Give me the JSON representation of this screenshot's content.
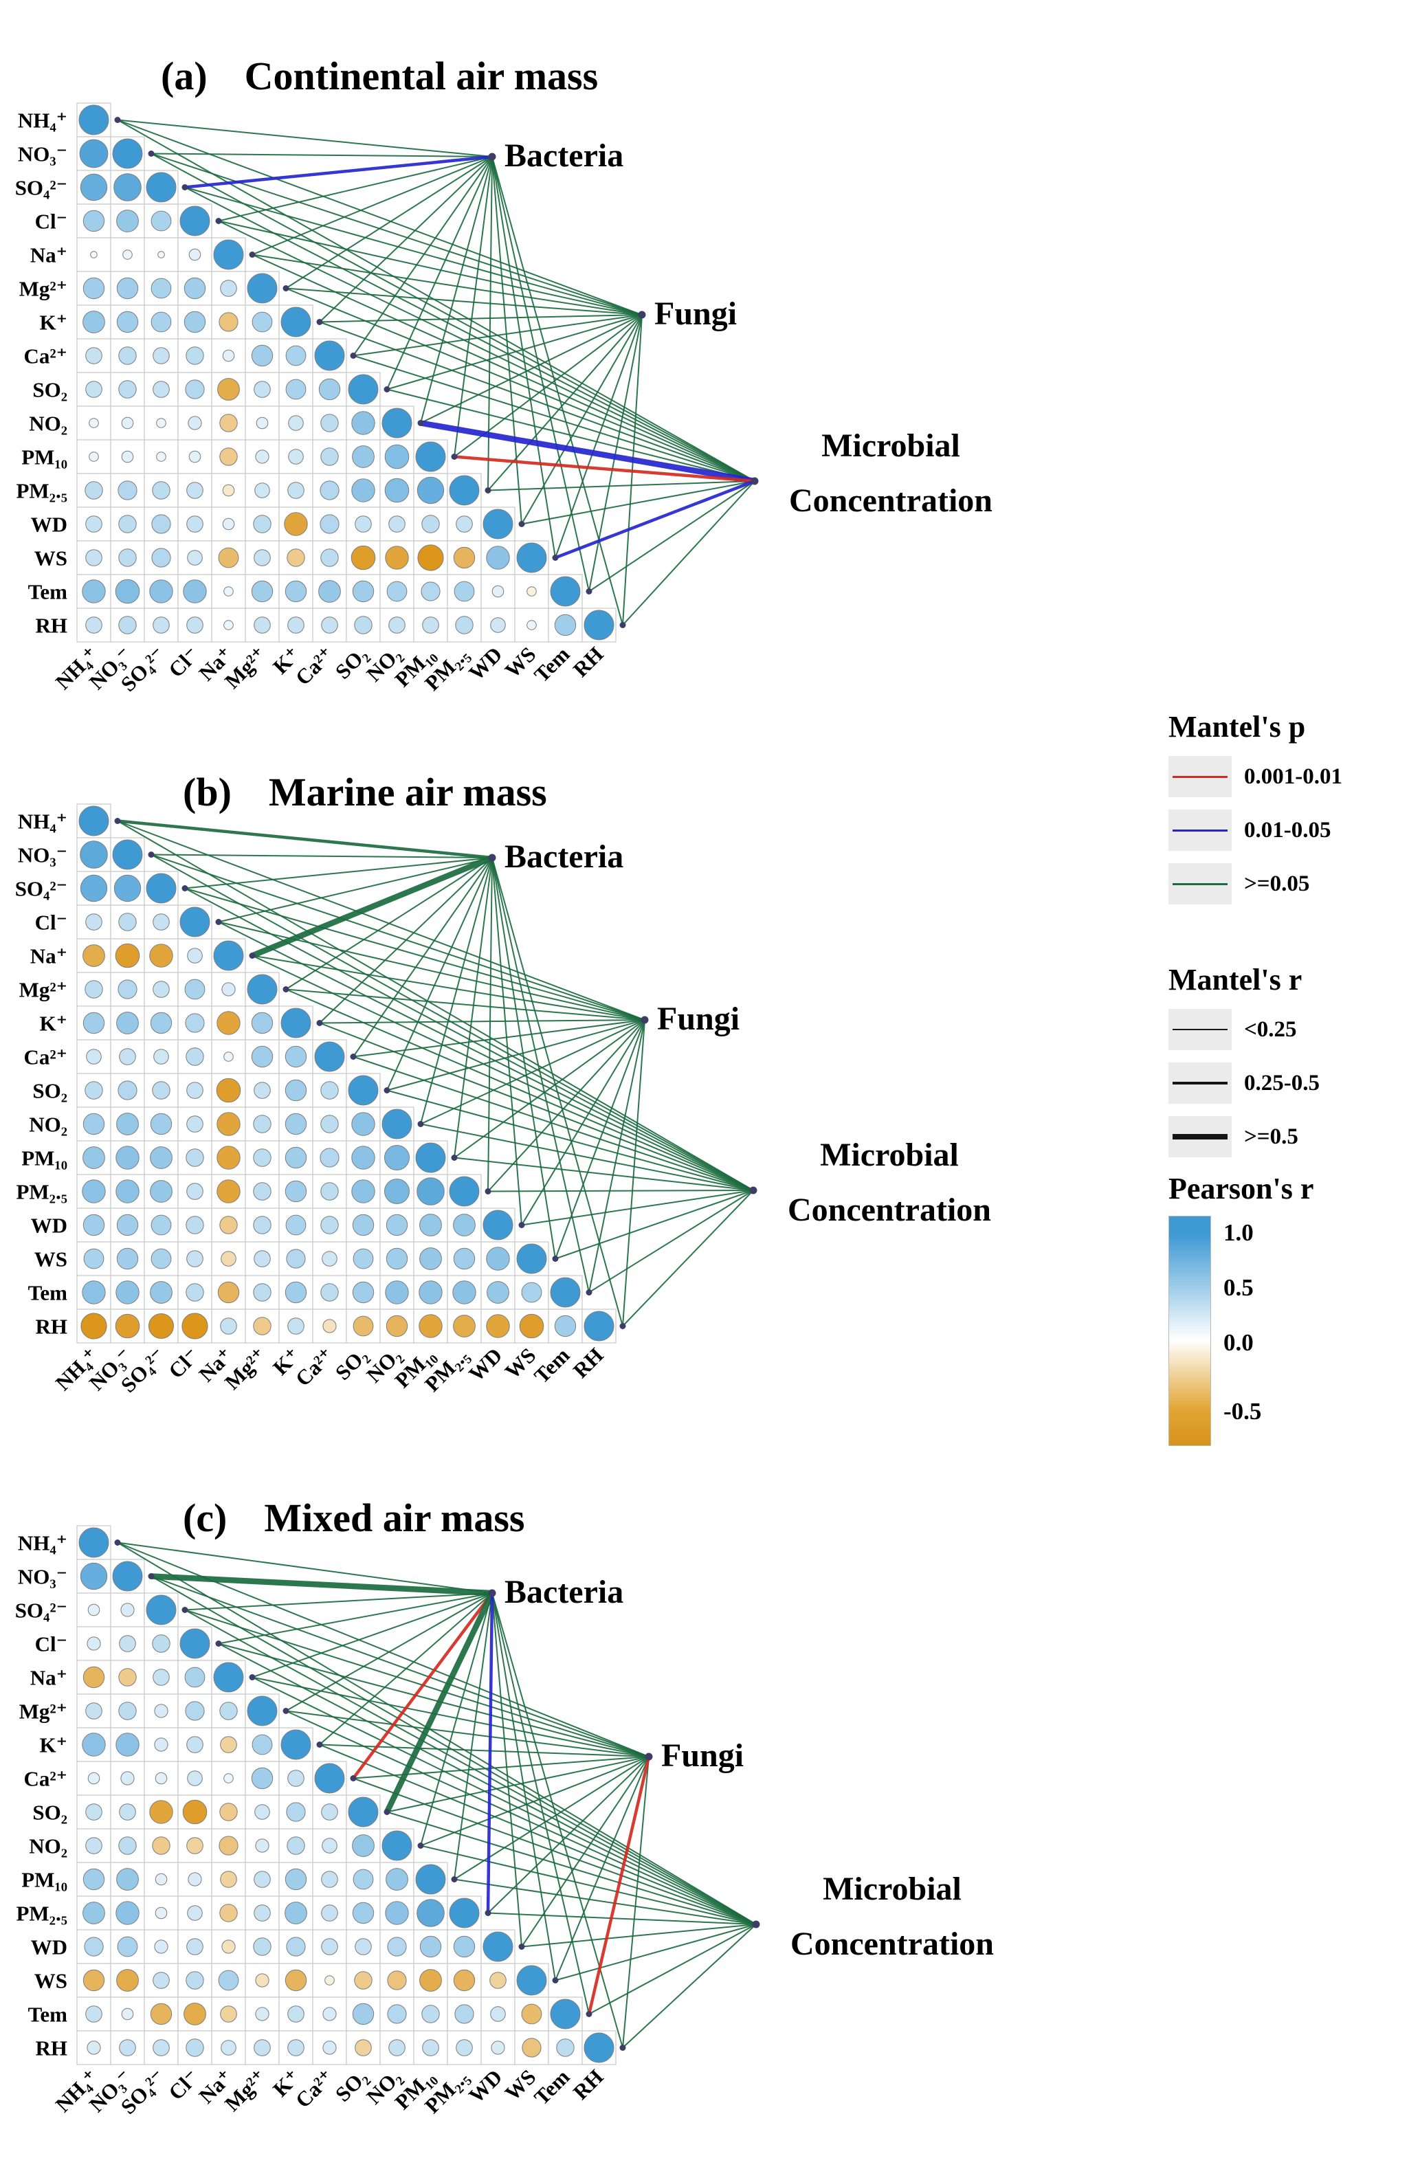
{
  "legend": {
    "mantel_p": {
      "title": "Mantel's p",
      "items": [
        {
          "label": "0.001-0.01",
          "color": "#D42A20"
        },
        {
          "label": "0.01-0.05",
          "color": "#2525CE"
        },
        {
          "label": ">=0.05",
          "color": "#1B6B3F"
        }
      ]
    },
    "mantel_r": {
      "title": "Mantel's r",
      "items": [
        {
          "label": "<0.25",
          "width": 2
        },
        {
          "label": "0.25-0.5",
          "width": 4.5
        },
        {
          "label": ">=0.5",
          "width": 8.5
        }
      ]
    },
    "pearson": {
      "title": "Pearson's r",
      "ticks": [
        "1.0",
        "0.5",
        "0.0",
        "-0.5"
      ],
      "palette": {
        "pos": "#3F9AD4",
        "neg": "#DC961B"
      },
      "gradient": [
        {
          "stop": 0,
          "color": "#3F9AD4"
        },
        {
          "stop": 8,
          "color": "#3F9AD4"
        },
        {
          "stop": 54,
          "color": "#FFFFFF"
        },
        {
          "stop": 84,
          "color": "#E2A637"
        },
        {
          "stop": 100,
          "color": "#D6921B"
        }
      ]
    }
  },
  "chart_data": [
    {
      "type": "heatmap",
      "panel": "a",
      "tag": "(a)",
      "title": "Continental air mass",
      "variables": [
        "NH₄⁺",
        "NO₃⁻",
        "SO₄²⁻",
        "Cl⁻",
        "Na⁺",
        "Mg²⁺",
        "K⁺",
        "Ca²⁺",
        "SO₂",
        "NO₂",
        "PM₁₀",
        "PM₂.₅",
        "WD",
        "WS",
        "Tem",
        "RH"
      ],
      "matrix": [
        [
          1
        ],
        [
          0.9,
          1
        ],
        [
          0.8,
          0.85,
          1
        ],
        [
          0.5,
          0.55,
          0.45,
          1
        ],
        [
          0.05,
          0.1,
          0.05,
          0.15,
          1
        ],
        [
          0.5,
          0.5,
          0.45,
          0.5,
          0.3,
          1
        ],
        [
          0.55,
          0.5,
          0.45,
          0.5,
          -0.4,
          0.45,
          1
        ],
        [
          0.3,
          0.35,
          0.3,
          0.35,
          0.15,
          0.5,
          0.45,
          1
        ],
        [
          0.3,
          0.35,
          0.3,
          0.4,
          -0.55,
          0.3,
          0.45,
          0.5,
          1
        ],
        [
          0.1,
          0.15,
          0.1,
          0.2,
          -0.35,
          0.15,
          0.25,
          0.35,
          0.6,
          1
        ],
        [
          0.1,
          0.15,
          0.1,
          0.15,
          -0.35,
          0.2,
          0.25,
          0.35,
          0.55,
          0.65,
          1
        ],
        [
          0.35,
          0.4,
          0.35,
          0.3,
          -0.15,
          0.25,
          0.3,
          0.4,
          0.6,
          0.65,
          0.8,
          1
        ],
        [
          0.3,
          0.35,
          0.4,
          0.3,
          0.15,
          0.35,
          -0.6,
          0.4,
          0.3,
          0.3,
          0.35,
          0.3,
          1
        ],
        [
          0.3,
          0.35,
          0.4,
          0.25,
          -0.45,
          0.3,
          -0.35,
          0.35,
          -0.65,
          -0.6,
          -0.75,
          -0.5,
          0.6,
          1
        ],
        [
          0.6,
          0.65,
          0.6,
          0.6,
          0.1,
          0.5,
          0.5,
          0.55,
          0.5,
          0.45,
          0.4,
          0.45,
          0.15,
          -0.1,
          1
        ],
        [
          0.3,
          0.35,
          0.3,
          0.3,
          0.1,
          0.3,
          0.3,
          0.3,
          0.35,
          0.3,
          0.3,
          0.35,
          0.25,
          0.1,
          0.5,
          1
        ]
      ],
      "nodes": [
        {
          "id": "bacteria",
          "lines": [
            "Bacteria"
          ]
        },
        {
          "id": "fungi",
          "lines": [
            "Fungi"
          ]
        },
        {
          "id": "microbial",
          "lines": [
            "Microbial",
            "Concentration"
          ]
        }
      ],
      "edge_default": {
        "p": ">=0.05",
        "r": "<0.25"
      },
      "edge_overrides": [
        {
          "node": "bacteria",
          "var": "SO₄²⁻",
          "p": "0.01-0.05",
          "r": "0.25-0.5"
        },
        {
          "node": "microbial",
          "var": "NO₂",
          "p": "0.01-0.05",
          "r": ">=0.5"
        },
        {
          "node": "microbial",
          "var": "PM₁₀",
          "p": "0.001-0.01",
          "r": "0.25-0.5"
        },
        {
          "node": "microbial",
          "var": "WS",
          "p": "0.01-0.05",
          "r": "0.25-0.5"
        }
      ]
    },
    {
      "type": "heatmap",
      "panel": "b",
      "tag": "(b)",
      "title": "Marine air mass",
      "variables": [
        "NH₄⁺",
        "NO₃⁻",
        "SO₄²⁻",
        "Cl⁻",
        "Na⁺",
        "Mg²⁺",
        "K⁺",
        "Ca²⁺",
        "SO₂",
        "NO₂",
        "PM₁₀",
        "PM₂.₅",
        "WD",
        "WS",
        "Tem",
        "RH"
      ],
      "matrix": [
        [
          1
        ],
        [
          0.85,
          1
        ],
        [
          0.8,
          0.8,
          1
        ],
        [
          0.3,
          0.35,
          0.3,
          1
        ],
        [
          -0.55,
          -0.65,
          -0.6,
          0.25,
          1
        ],
        [
          0.35,
          0.4,
          0.3,
          0.45,
          0.2,
          1
        ],
        [
          0.5,
          0.55,
          0.5,
          0.4,
          -0.6,
          0.5,
          1
        ],
        [
          0.25,
          0.3,
          0.25,
          0.35,
          0.1,
          0.5,
          0.5,
          1
        ],
        [
          0.35,
          0.4,
          0.35,
          0.3,
          -0.65,
          0.3,
          0.5,
          0.35,
          1
        ],
        [
          0.5,
          0.55,
          0.5,
          0.3,
          -0.6,
          0.35,
          0.5,
          0.35,
          0.6,
          1
        ],
        [
          0.55,
          0.6,
          0.55,
          0.35,
          -0.6,
          0.35,
          0.5,
          0.4,
          0.6,
          0.7,
          1
        ],
        [
          0.6,
          0.6,
          0.55,
          0.3,
          -0.6,
          0.35,
          0.5,
          0.35,
          0.6,
          0.7,
          0.85,
          1
        ],
        [
          0.5,
          0.5,
          0.45,
          0.35,
          -0.35,
          0.35,
          0.45,
          0.35,
          0.5,
          0.5,
          0.55,
          0.55,
          1
        ],
        [
          0.45,
          0.5,
          0.45,
          0.3,
          -0.25,
          0.3,
          0.4,
          0.25,
          0.45,
          0.5,
          0.55,
          0.5,
          0.6,
          1
        ],
        [
          0.6,
          0.6,
          0.55,
          0.35,
          -0.5,
          0.35,
          0.5,
          0.35,
          0.5,
          0.6,
          0.6,
          0.6,
          0.55,
          0.45,
          1
        ],
        [
          -0.75,
          -0.65,
          -0.7,
          -0.75,
          0.3,
          -0.35,
          0.3,
          -0.2,
          -0.45,
          -0.5,
          -0.6,
          -0.55,
          -0.6,
          -0.65,
          0.5,
          1
        ]
      ],
      "nodes": [
        {
          "id": "bacteria",
          "lines": [
            "Bacteria"
          ]
        },
        {
          "id": "fungi",
          "lines": [
            "Fungi"
          ]
        },
        {
          "id": "microbial",
          "lines": [
            "Microbial",
            "Concentration"
          ]
        }
      ],
      "edge_default": {
        "p": ">=0.05",
        "r": "<0.25"
      },
      "edge_overrides": [
        {
          "node": "bacteria",
          "var": "Na⁺",
          "p": ">=0.05",
          "r": ">=0.5"
        },
        {
          "node": "bacteria",
          "var": "NH₄⁺",
          "p": ">=0.05",
          "r": "0.25-0.5"
        }
      ]
    },
    {
      "type": "heatmap",
      "panel": "c",
      "tag": "(c)",
      "title": "Mixed air mass",
      "variables": [
        "NH₄⁺",
        "NO₃⁻",
        "SO₄²⁻",
        "Cl⁻",
        "Na⁺",
        "Mg²⁺",
        "K⁺",
        "Ca²⁺",
        "SO₂",
        "NO₂",
        "PM₁₀",
        "PM₂.₅",
        "WD",
        "WS",
        "Tem",
        "RH"
      ],
      "matrix": [
        [
          1
        ],
        [
          0.8,
          1
        ],
        [
          0.15,
          0.2,
          1
        ],
        [
          0.2,
          0.3,
          0.35,
          1
        ],
        [
          -0.5,
          -0.35,
          0.3,
          0.45,
          1
        ],
        [
          0.3,
          0.35,
          0.2,
          0.4,
          0.35,
          1
        ],
        [
          0.6,
          0.6,
          0.2,
          0.3,
          -0.3,
          0.45,
          1
        ],
        [
          0.15,
          0.2,
          0.15,
          0.25,
          0.1,
          0.5,
          0.3,
          1
        ],
        [
          0.3,
          0.3,
          -0.6,
          -0.65,
          -0.35,
          0.25,
          0.4,
          0.3,
          1
        ],
        [
          0.3,
          0.35,
          -0.35,
          -0.3,
          -0.4,
          0.2,
          0.35,
          0.25,
          0.55,
          1
        ],
        [
          0.5,
          0.55,
          0.15,
          0.2,
          -0.3,
          0.3,
          0.5,
          0.3,
          0.45,
          0.55,
          1
        ],
        [
          0.55,
          0.6,
          0.15,
          0.25,
          -0.35,
          0.3,
          0.55,
          0.3,
          0.5,
          0.6,
          0.85,
          1
        ],
        [
          0.4,
          0.45,
          0.2,
          0.3,
          -0.2,
          0.35,
          0.4,
          0.3,
          0.3,
          0.4,
          0.5,
          0.5,
          1
        ],
        [
          -0.5,
          -0.55,
          0.3,
          0.35,
          0.45,
          -0.2,
          -0.5,
          -0.1,
          -0.35,
          -0.4,
          -0.55,
          -0.5,
          -0.3,
          1
        ],
        [
          0.3,
          0.15,
          -0.5,
          -0.55,
          -0.3,
          0.2,
          0.3,
          0.2,
          0.5,
          0.4,
          0.35,
          0.4,
          0.25,
          -0.45,
          1
        ],
        [
          0.2,
          0.3,
          0.3,
          0.35,
          0.25,
          0.3,
          0.3,
          0.2,
          -0.3,
          0.3,
          0.3,
          0.3,
          0.2,
          -0.4,
          0.35,
          1
        ]
      ],
      "nodes": [
        {
          "id": "bacteria",
          "lines": [
            "Bacteria"
          ]
        },
        {
          "id": "fungi",
          "lines": [
            "Fungi"
          ]
        },
        {
          "id": "microbial",
          "lines": [
            "Microbial",
            "Concentration"
          ]
        }
      ],
      "edge_default": {
        "p": ">=0.05",
        "r": "<0.25"
      },
      "edge_overrides": [
        {
          "node": "bacteria",
          "var": "NO₃⁻",
          "p": ">=0.05",
          "r": ">=0.5"
        },
        {
          "node": "bacteria",
          "var": "SO₂",
          "p": ">=0.05",
          "r": ">=0.5"
        },
        {
          "node": "bacteria",
          "var": "Ca²⁺",
          "p": "0.001-0.01",
          "r": "0.25-0.5"
        },
        {
          "node": "bacteria",
          "var": "PM₂.₅",
          "p": "0.01-0.05",
          "r": "0.25-0.5"
        },
        {
          "node": "fungi",
          "var": "Tem",
          "p": "0.001-0.01",
          "r": "0.25-0.5"
        }
      ]
    }
  ]
}
